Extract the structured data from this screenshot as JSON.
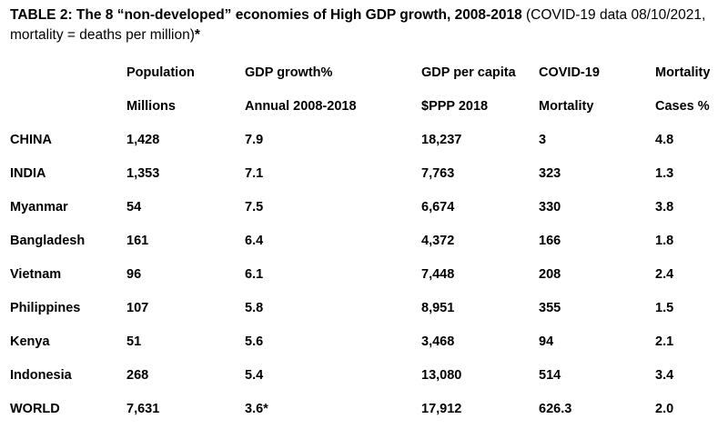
{
  "table": {
    "caption_bold": "TABLE 2: The 8 “non-developed” economies of High GDP growth, 2008-2018",
    "caption_normal": " (COVID-19 data 08/10/2021, mortality = deaths per million)",
    "caption_star": "*",
    "header_line1": [
      "",
      "Population",
      "GDP growth%",
      "GDP per capita",
      "COVID-19",
      "Mortality"
    ],
    "header_line2": [
      "",
      "Millions",
      "Annual 2008-2018",
      "$PPP 2018",
      "Mortality",
      "Cases %"
    ],
    "rows": [
      [
        "CHINA",
        "1,428",
        "7.9",
        "18,237",
        "3",
        "4.8"
      ],
      [
        "INDIA",
        "1,353",
        "7.1",
        "7,763",
        "323",
        "1.3"
      ],
      [
        "Myanmar",
        "54",
        "7.5",
        "6,674",
        "330",
        "3.8"
      ],
      [
        "Bangladesh",
        "161",
        "6.4",
        "4,372",
        "166",
        "1.8"
      ],
      [
        "Vietnam",
        "96",
        "6.1",
        "7,448",
        "208",
        "2.4"
      ],
      [
        "Philippines",
        "107",
        "5.8",
        "8,951",
        "355",
        "1.5"
      ],
      [
        "Kenya",
        "51",
        "5.6",
        "3,468",
        "94",
        "2.1"
      ],
      [
        "Indonesia",
        "268",
        "5.4",
        "13,080",
        "514",
        "3.4"
      ],
      [
        "WORLD",
        "7,631",
        "3.6*",
        "17,912",
        "626.3",
        "2.0"
      ]
    ]
  }
}
